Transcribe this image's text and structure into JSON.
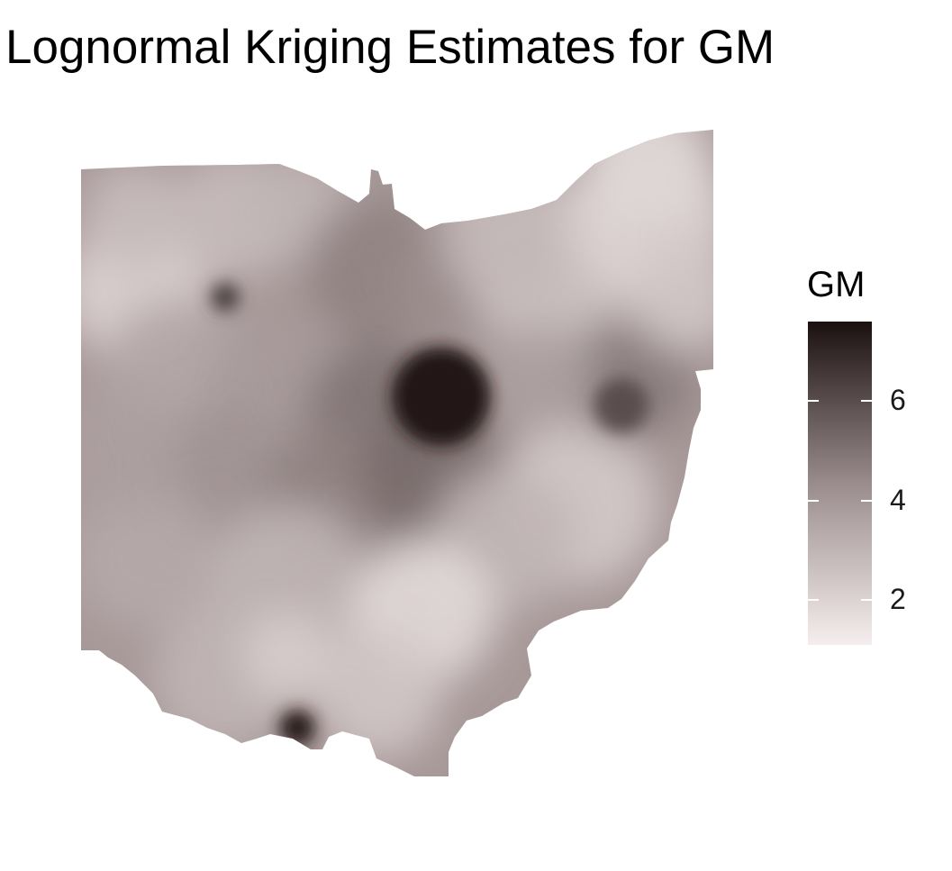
{
  "chart_data": {
    "type": "heatmap",
    "title": "Lognormal Kriging Estimates for GM",
    "legend": {
      "title": "GM",
      "placement": "right",
      "ticks": [
        2,
        4,
        6
      ],
      "range": [
        1.1,
        7.6
      ],
      "colors": {
        "low": "#f6eeee",
        "mid": "#9a8c8c",
        "high": "#1b1010"
      }
    },
    "region": "Ohio",
    "hotspots": [
      {
        "value": 7.4
      },
      {
        "value": 7.2
      },
      {
        "value": 6.3
      },
      {
        "value": 6.0
      }
    ]
  }
}
